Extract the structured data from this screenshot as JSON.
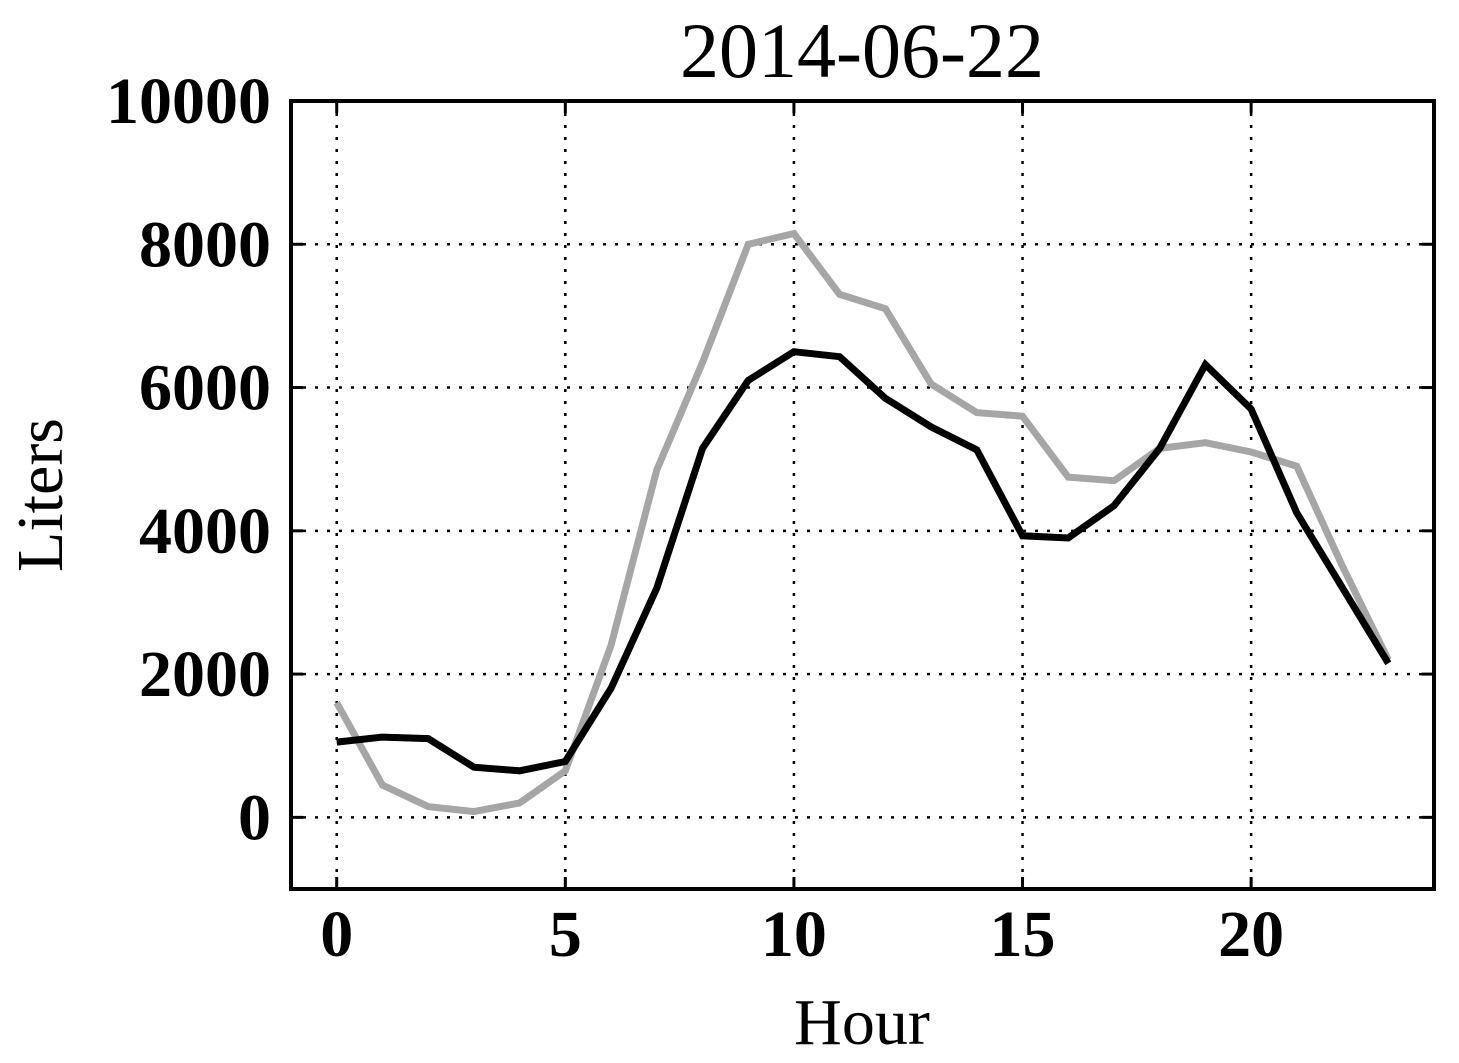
{
  "chart_data": {
    "type": "line",
    "title": "2014-06-22",
    "xlabel": "Hour",
    "ylabel": "Liters",
    "xlim": [
      -1,
      24
    ],
    "ylim": [
      -1000,
      10000
    ],
    "xticks": [
      0,
      5,
      10,
      15,
      20
    ],
    "xtick_labels": [
      "0",
      "5",
      "10",
      "15",
      "20"
    ],
    "yticks": [
      0,
      2000,
      4000,
      6000,
      8000,
      10000
    ],
    "ytick_labels": [
      "0",
      "2000",
      "4000",
      "6000",
      "8000",
      "10000"
    ],
    "grid": true,
    "grid_style": "dotted",
    "x": [
      0,
      1,
      2,
      3,
      4,
      5,
      6,
      7,
      8,
      9,
      10,
      11,
      12,
      13,
      14,
      15,
      16,
      17,
      18,
      19,
      20,
      21,
      22,
      23
    ],
    "series": [
      {
        "color": "#a6a6a6",
        "values": [
          1600,
          450,
          150,
          80,
          200,
          650,
          2400,
          4850,
          6350,
          8000,
          8150,
          7300,
          7100,
          6050,
          5650,
          5600,
          4750,
          4700,
          5150,
          5230,
          5100,
          4900,
          3500,
          2200
        ]
      },
      {
        "color": "#000000",
        "values": [
          1050,
          1120,
          1100,
          700,
          650,
          780,
          1800,
          3200,
          5150,
          6100,
          6500,
          6430,
          5850,
          5450,
          5130,
          3930,
          3900,
          4350,
          5150,
          6320,
          5700,
          4250,
          3200,
          2150
        ]
      }
    ]
  }
}
